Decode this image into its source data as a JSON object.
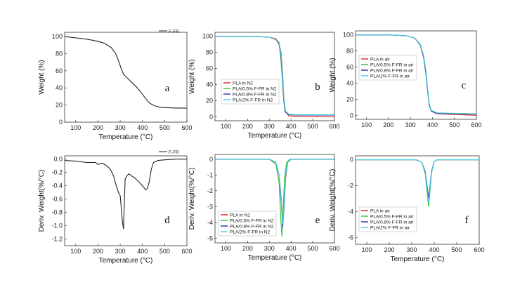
{
  "chart_data": [
    {
      "id": "a",
      "panel_label": "a",
      "type": "line",
      "xlabel": "Temperature (°C)",
      "ylabel": "Weight (%)",
      "xlim": [
        50,
        600
      ],
      "ylim": [
        0,
        105
      ],
      "xticks": [
        100,
        200,
        300,
        400,
        500,
        600
      ],
      "yticks": [
        0,
        20,
        40,
        60,
        80,
        100
      ],
      "legend_position": "top-right",
      "series": [
        {
          "name": "F-FR",
          "color": "#222222",
          "x": [
            50,
            100,
            150,
            200,
            230,
            260,
            280,
            295,
            305,
            315,
            330,
            350,
            370,
            390,
            410,
            425,
            440,
            460,
            480,
            500,
            550,
            600
          ],
          "y": [
            100,
            98.5,
            97,
            94.5,
            92,
            87,
            80,
            70,
            62,
            56,
            52,
            47,
            42,
            36,
            29,
            24,
            21,
            18.5,
            17.5,
            17,
            16.5,
            16.3
          ]
        }
      ]
    },
    {
      "id": "b",
      "panel_label": "b",
      "type": "line",
      "xlabel": "Temperature (°C)",
      "ylabel": "Weight (%)",
      "xlim": [
        50,
        600
      ],
      "ylim": [
        -5,
        105
      ],
      "xticks": [
        100,
        200,
        300,
        400,
        500,
        600
      ],
      "yticks": [
        0,
        20,
        40,
        60,
        80,
        100
      ],
      "legend_position": "bottom-left",
      "series": [
        {
          "name": "PLA in N2",
          "color": "#e02020",
          "x": [
            50,
            200,
            300,
            330,
            345,
            355,
            362,
            368,
            375,
            390,
            420,
            500,
            600
          ],
          "y": [
            100,
            100,
            99,
            97,
            92,
            78,
            50,
            20,
            6,
            1,
            0.5,
            0,
            0
          ]
        },
        {
          "name": "PLA/0.5% F-FR in N2",
          "color": "#30c030",
          "x": [
            50,
            200,
            300,
            330,
            345,
            352,
            360,
            366,
            373,
            390,
            420,
            500,
            600
          ],
          "y": [
            100,
            100,
            99,
            96,
            90,
            76,
            48,
            20,
            6,
            3,
            2.5,
            2.5,
            2.5
          ]
        },
        {
          "name": "PLA/0.8% F-FR in N2",
          "color": "#2030b0",
          "x": [
            50,
            200,
            300,
            330,
            345,
            353,
            360,
            366,
            374,
            390,
            420,
            500,
            600
          ],
          "y": [
            100,
            100,
            99,
            96,
            90,
            77,
            50,
            22,
            6,
            2.5,
            2,
            2,
            2
          ]
        },
        {
          "name": "PLA/2% F-FR  in N2",
          "color": "#40d0e0",
          "x": [
            50,
            200,
            300,
            330,
            345,
            354,
            361,
            367,
            375,
            390,
            420,
            500,
            600
          ],
          "y": [
            100,
            100,
            99,
            96,
            91,
            78,
            52,
            22,
            7,
            3,
            2.5,
            2.5,
            2.5
          ]
        }
      ]
    },
    {
      "id": "c",
      "panel_label": "c",
      "type": "line",
      "xlabel": "",
      "ylabel": "Weight (%)",
      "xlim": [
        50,
        600
      ],
      "ylim": [
        -5,
        105
      ],
      "xticks": [
        100,
        200,
        300,
        400,
        500,
        600
      ],
      "yticks": [
        0,
        20,
        40,
        60,
        80,
        100
      ],
      "legend_position": "bottom-left",
      "series": [
        {
          "name": "PLA in air",
          "color": "#e02020",
          "x": [
            50,
            200,
            280,
            320,
            345,
            360,
            370,
            378,
            385,
            395,
            420,
            500,
            600
          ],
          "y": [
            100,
            100,
            99,
            96,
            88,
            74,
            55,
            32,
            14,
            5,
            2,
            1,
            0
          ]
        },
        {
          "name": "PLA/0.5% F-FR in air",
          "color": "#30c030",
          "x": [
            50,
            200,
            280,
            320,
            345,
            360,
            370,
            378,
            385,
            395,
            420,
            500,
            600
          ],
          "y": [
            100,
            100,
            99,
            96,
            87,
            73,
            54,
            31,
            14,
            6,
            3,
            2,
            1.5
          ]
        },
        {
          "name": "PLA/0.8% F-FR in air",
          "color": "#2030b0",
          "x": [
            50,
            200,
            280,
            320,
            345,
            360,
            370,
            378,
            385,
            395,
            420,
            500,
            600
          ],
          "y": [
            100,
            100,
            99,
            96,
            87,
            72,
            52,
            30,
            13,
            5,
            2.5,
            2,
            1.5
          ]
        },
        {
          "name": "PLA/2% F-FR in air",
          "color": "#40d0e0",
          "x": [
            50,
            200,
            280,
            320,
            345,
            360,
            370,
            378,
            385,
            395,
            420,
            500,
            600
          ],
          "y": [
            100,
            100,
            99,
            96,
            88,
            74,
            56,
            33,
            15,
            6,
            3,
            2.5,
            2
          ]
        }
      ]
    },
    {
      "id": "d",
      "panel_label": "d",
      "type": "line",
      "xlabel": "Temperature (°C)",
      "ylabel": "Deriv. Weight(%/°C)",
      "xlim": [
        50,
        600
      ],
      "ylim": [
        -1.3,
        0.05
      ],
      "xticks": [
        100,
        200,
        300,
        400,
        500,
        600
      ],
      "yticks": [
        0.0,
        -0.2,
        -0.4,
        -0.6,
        -0.8,
        -1.0,
        -1.2
      ],
      "legend_position": "top-right",
      "series": [
        {
          "name": "F-FR",
          "color": "#222222",
          "x": [
            50,
            100,
            150,
            190,
            200,
            220,
            240,
            255,
            270,
            282,
            292,
            300,
            305,
            310,
            315,
            318,
            322,
            330,
            340,
            350,
            365,
            380,
            395,
            405,
            415,
            422,
            430,
            440,
            450,
            470,
            500,
            550,
            600
          ],
          "y": [
            -0.02,
            -0.03,
            -0.05,
            -0.05,
            -0.08,
            -0.06,
            -0.1,
            -0.15,
            -0.25,
            -0.4,
            -0.5,
            -0.55,
            -0.75,
            -0.95,
            -1.05,
            -0.7,
            -0.3,
            -0.25,
            -0.22,
            -0.25,
            -0.28,
            -0.33,
            -0.38,
            -0.42,
            -0.46,
            -0.44,
            -0.35,
            -0.15,
            -0.05,
            -0.02,
            -0.01,
            0.0,
            0.0
          ]
        }
      ]
    },
    {
      "id": "e",
      "panel_label": "e",
      "type": "line",
      "xlabel": "Temperature (°C)",
      "ylabel": "Deriv. Weight(%/°C)",
      "xlim": [
        50,
        600
      ],
      "ylim": [
        -5.3,
        0.3
      ],
      "xticks": [
        100,
        200,
        300,
        400,
        500,
        600
      ],
      "yticks": [
        0,
        -1,
        -2,
        -3,
        -4,
        -5
      ],
      "legend_position": "bottom-left",
      "series": [
        {
          "name": "PLA  in N2",
          "color": "#e02020",
          "x": [
            50,
            300,
            330,
            345,
            355,
            362,
            368,
            375,
            385,
            400,
            600
          ],
          "y": [
            0,
            0,
            -0.2,
            -1,
            -2.5,
            -4.0,
            -3.0,
            -1.2,
            -0.2,
            0,
            0
          ]
        },
        {
          "name": "PLA/0.5% F-FR in N2",
          "color": "#30c030",
          "x": [
            50,
            300,
            330,
            345,
            352,
            358,
            363,
            370,
            380,
            395,
            600
          ],
          "y": [
            0,
            0,
            -0.3,
            -1.5,
            -3.5,
            -4.9,
            -3.5,
            -1.2,
            -0.2,
            0,
            0
          ]
        },
        {
          "name": "PLA/0.8%  F-FR  in N2",
          "color": "#2030b0",
          "x": [
            50,
            300,
            330,
            345,
            355,
            362,
            368,
            375,
            385,
            400,
            600
          ],
          "y": [
            0,
            0,
            -0.2,
            -1,
            -2.8,
            -4.3,
            -3.0,
            -1.1,
            -0.2,
            0,
            0
          ]
        },
        {
          "name": "PLA/2% F-FR  in N2",
          "color": "#40d0e0",
          "x": [
            50,
            300,
            330,
            345,
            355,
            362,
            368,
            375,
            385,
            400,
            600
          ],
          "y": [
            0,
            0,
            -0.2,
            -1,
            -2.7,
            -4.1,
            -2.9,
            -1.0,
            -0.2,
            0,
            0
          ]
        }
      ]
    },
    {
      "id": "f",
      "panel_label": "f",
      "type": "line",
      "xlabel": "Temperature (°C)",
      "ylabel": "Deriv. Weight(%/°C)",
      "xlim": [
        50,
        600
      ],
      "ylim": [
        -6.5,
        0.3
      ],
      "xticks": [
        100,
        200,
        300,
        400,
        500,
        600
      ],
      "yticks": [
        0,
        -2,
        -4,
        -6
      ],
      "legend_position": "bottom-left",
      "series": [
        {
          "name": "PLA  in air",
          "color": "#e02020",
          "x": [
            50,
            320,
            345,
            360,
            368,
            374,
            380,
            388,
            398,
            410,
            600
          ],
          "y": [
            0,
            0,
            -0.2,
            -1,
            -2.2,
            -3.3,
            -2.5,
            -1,
            -0.2,
            0,
            0
          ]
        },
        {
          "name": "PLA/0.5% F-FR in air",
          "color": "#30c030",
          "x": [
            50,
            320,
            345,
            360,
            368,
            375,
            380,
            388,
            398,
            410,
            600
          ],
          "y": [
            0,
            0,
            -0.2,
            -1.1,
            -2.5,
            -3.6,
            -2.7,
            -1,
            -0.2,
            0,
            0
          ]
        },
        {
          "name": "PLA/0.8%  F-FR  in air",
          "color": "#2030b0",
          "x": [
            50,
            320,
            345,
            360,
            368,
            374,
            380,
            388,
            398,
            410,
            600
          ],
          "y": [
            0,
            0,
            -0.2,
            -0.9,
            -2.0,
            -2.9,
            -2.2,
            -0.9,
            -0.2,
            0,
            0
          ]
        },
        {
          "name": "PLA/2% F-FR in air",
          "color": "#40d0e0",
          "x": [
            50,
            320,
            345,
            360,
            368,
            374,
            380,
            388,
            398,
            410,
            600
          ],
          "y": [
            0,
            0,
            -0.2,
            -1.0,
            -2.3,
            -3.3,
            -2.4,
            -1,
            -0.2,
            0,
            0
          ]
        }
      ]
    }
  ]
}
